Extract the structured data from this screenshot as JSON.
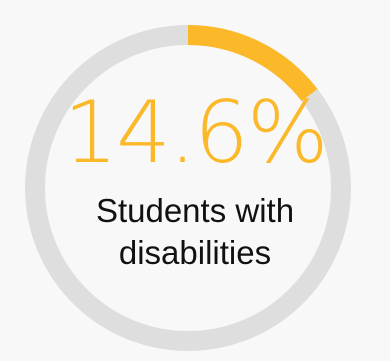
{
  "chart_data": {
    "type": "pie",
    "subtype": "donut",
    "value_percent": 14.6,
    "value_label": "14.6%",
    "label_lines": [
      "Students with",
      "disabilities"
    ],
    "colors": {
      "value": "#fbb829",
      "remainder": "#dedede",
      "background": "#f8f8f8",
      "label": "#111111"
    }
  }
}
